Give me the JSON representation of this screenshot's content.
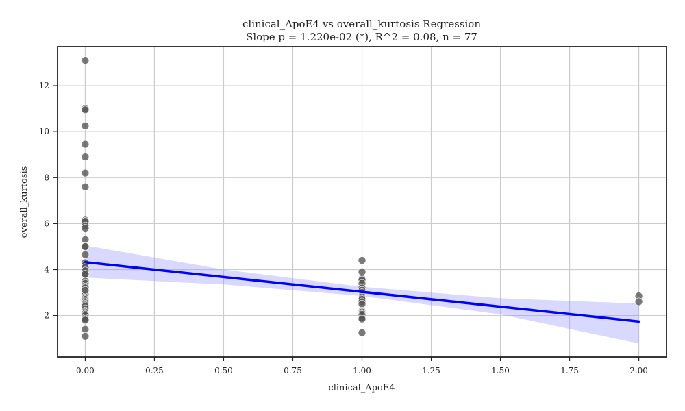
{
  "chart_data": {
    "type": "scatter",
    "title": "clinical_ApoE4 vs overall_kurtosis Regression",
    "subtitle": "Slope p = 1.220e-02 (*), R^2 = 0.08, n = 77",
    "xlabel": "clinical_ApoE4",
    "ylabel": "overall_kurtosis",
    "xlim": [
      -0.1,
      2.1
    ],
    "ylim": [
      0.2,
      13.7
    ],
    "xticks": [
      0.0,
      0.25,
      0.5,
      0.75,
      1.0,
      1.25,
      1.5,
      1.75,
      2.0
    ],
    "xtick_labels": [
      "0.00",
      "0.25",
      "0.50",
      "0.75",
      "1.00",
      "1.25",
      "1.50",
      "1.75",
      "2.00"
    ],
    "yticks": [
      2,
      4,
      6,
      8,
      10,
      12
    ],
    "ytick_labels": [
      "2",
      "4",
      "6",
      "8",
      "10",
      "12"
    ],
    "grid": true,
    "points": {
      "color": "#555555",
      "x": [
        0,
        0,
        0,
        0,
        0,
        0,
        0,
        0,
        0,
        0,
        0,
        0,
        0,
        0,
        0,
        0,
        0,
        0,
        0,
        0,
        0,
        0,
        0,
        0,
        0,
        0,
        0,
        0,
        0,
        0,
        0,
        0,
        0,
        0,
        0,
        0,
        0,
        0,
        0,
        0,
        0,
        0,
        0,
        0,
        0,
        0,
        0,
        0,
        0,
        0,
        0,
        0,
        1,
        1,
        1,
        1,
        1,
        1,
        1,
        1,
        1,
        1,
        1,
        1,
        1,
        1,
        1,
        1,
        1,
        1,
        1,
        1,
        1,
        1,
        1,
        2,
        2
      ],
      "y": [
        13.1,
        11.0,
        10.95,
        10.25,
        9.45,
        8.9,
        8.2,
        7.6,
        6.15,
        6.1,
        5.9,
        5.8,
        5.3,
        5.0,
        5.0,
        4.65,
        4.3,
        4.2,
        4.1,
        3.95,
        3.8,
        3.8,
        3.5,
        3.4,
        3.3,
        3.25,
        3.2,
        3.1,
        3.0,
        2.95,
        2.9,
        2.8,
        2.75,
        2.7,
        2.65,
        2.6,
        2.55,
        2.5,
        2.45,
        2.4,
        2.3,
        2.2,
        2.15,
        2.1,
        2.05,
        2.0,
        1.9,
        1.85,
        1.8,
        1.4,
        1.1,
        3.1,
        4.4,
        3.9,
        3.6,
        3.55,
        3.4,
        3.2,
        3.1,
        3.0,
        2.9,
        2.85,
        2.8,
        2.75,
        2.7,
        2.6,
        2.5,
        2.2,
        2.15,
        2.1,
        2.05,
        2.0,
        1.9,
        1.85,
        1.25,
        2.85,
        2.6
      ]
    },
    "regression": {
      "color": "#0000ff",
      "x": [
        0,
        2
      ],
      "y": [
        4.32,
        1.74
      ]
    },
    "confidence_band": {
      "color": "#8c8cff",
      "x": [
        0,
        0.5,
        1.0,
        1.5,
        2.0
      ],
      "lower": [
        3.65,
        3.35,
        2.85,
        2.05,
        0.78
      ],
      "upper": [
        5.05,
        4.0,
        3.25,
        2.75,
        2.52
      ]
    }
  }
}
